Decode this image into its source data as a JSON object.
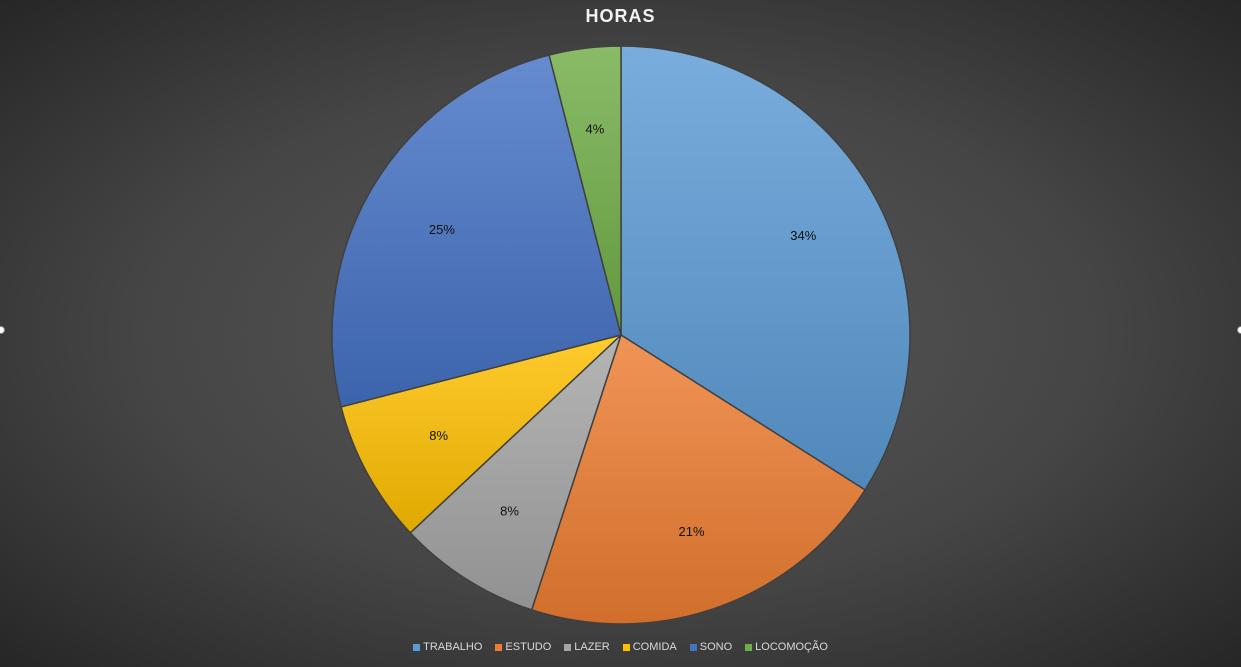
{
  "chart_data": {
    "type": "pie",
    "title": "HORAS",
    "categories": [
      "TRABALHO",
      "ESTUDO",
      "LAZER",
      "COMIDA",
      "SONO",
      "LOCOMOÇÃO"
    ],
    "values": [
      34,
      21,
      8,
      8,
      25,
      4
    ],
    "data_labels": [
      "34%",
      "21%",
      "8%",
      "8%",
      "25%",
      "4%"
    ],
    "colors": [
      "#5b9bd5",
      "#ed7d31",
      "#a5a5a5",
      "#ffc000",
      "#4472c4",
      "#70ad47"
    ],
    "legend_position": "bottom",
    "start_angle": "12 o'clock, clockwise"
  }
}
